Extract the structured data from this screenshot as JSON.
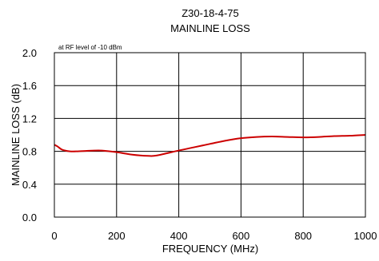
{
  "chart_data": {
    "type": "line",
    "title": "Z30-18-4-75",
    "subtitle": "MAINLINE LOSS",
    "annotation": "at RF level of -10 dBm",
    "xlabel": "FREQUENCY (MHz)",
    "ylabel": "MAINLINE LOSS (dB)",
    "xlim": [
      0,
      1000
    ],
    "ylim": [
      0.0,
      2.0
    ],
    "xticks": [
      0,
      200,
      400,
      600,
      800,
      1000
    ],
    "xtick_labels": [
      "0",
      "200",
      "400",
      "600",
      "800",
      "1000"
    ],
    "yticks": [
      0.0,
      0.4,
      0.8,
      1.2,
      1.6,
      2.0
    ],
    "ytick_labels": [
      "0.0",
      "0.4",
      "0.8",
      "1.2",
      "1.6",
      "2.0"
    ],
    "grid": true,
    "line_color": "#cc0000",
    "series": [
      {
        "x": [
          0,
          10,
          25,
          50,
          75,
          100,
          150,
          200,
          250,
          300,
          330,
          400,
          450,
          500,
          550,
          600,
          650,
          700,
          750,
          800,
          850,
          900,
          950,
          1000
        ],
        "y": [
          0.88,
          0.86,
          0.82,
          0.8,
          0.8,
          0.805,
          0.81,
          0.79,
          0.76,
          0.745,
          0.75,
          0.81,
          0.85,
          0.89,
          0.93,
          0.96,
          0.975,
          0.98,
          0.975,
          0.97,
          0.975,
          0.985,
          0.99,
          1.0
        ]
      }
    ]
  }
}
